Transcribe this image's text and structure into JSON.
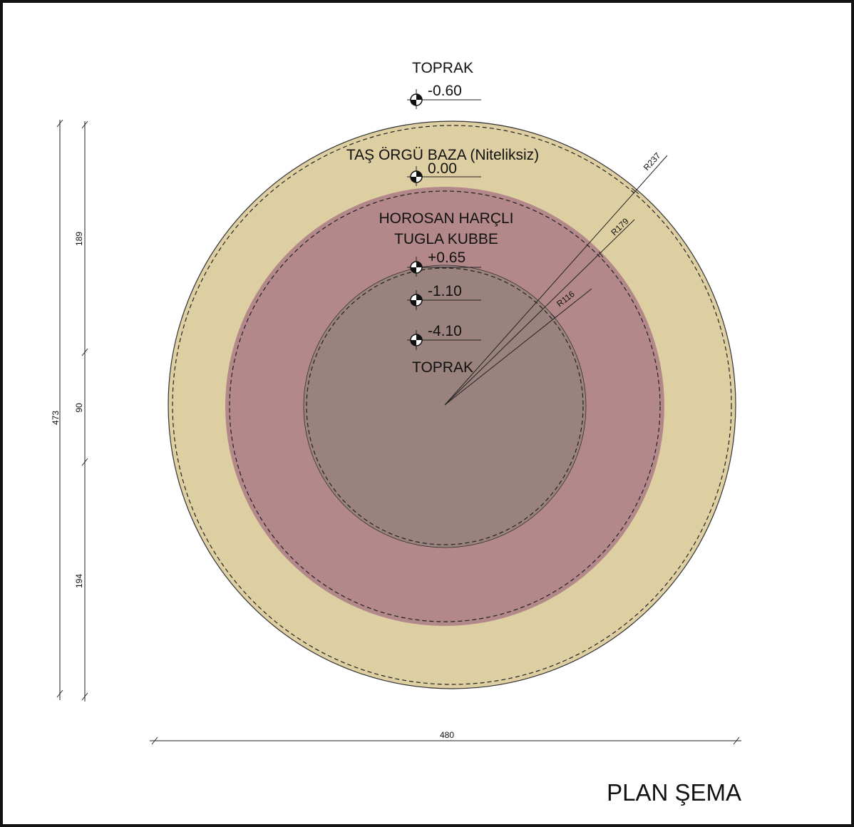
{
  "colors": {
    "outer_ring": "#decfa2",
    "middle_ring": "#b3888a",
    "inner_circle": "#9a827f",
    "frame": "#111111",
    "line": "#222222"
  },
  "labels": {
    "top_soil": "TOPRAK",
    "stone_base": "TAŞ ÖRGÜ BAZA (Niteliksiz)",
    "dome_line1": "HOROSAN HARÇLI",
    "dome_line2": "TUGLA KUBBE",
    "bottom_soil": "TOPRAK"
  },
  "levels": [
    "-0.60",
    "0.00",
    "+0.65",
    "-1.10",
    "-4.10"
  ],
  "radii": [
    "R237",
    "R179",
    "R116"
  ],
  "dimensions": {
    "total_height": "473",
    "seg_top": "189",
    "seg_mid": "90",
    "seg_bottom": "194",
    "width": "480"
  },
  "title": "PLAN ŞEMA"
}
